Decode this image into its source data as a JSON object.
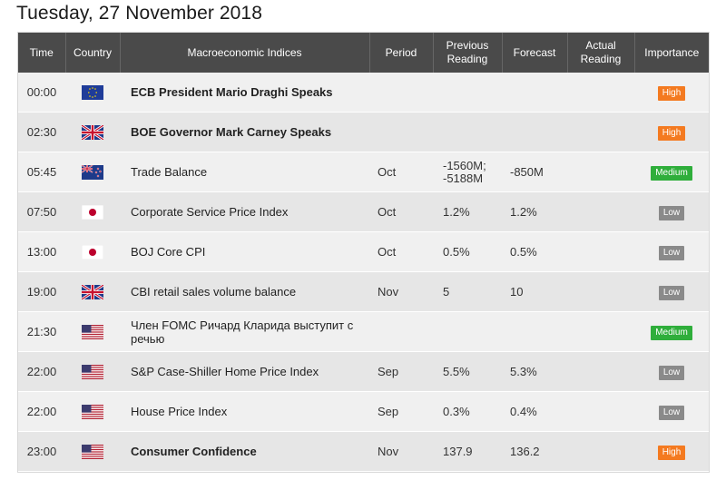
{
  "page_title": "Tuesday, 27 November 2018",
  "headers": {
    "time": "Time",
    "country": "Country",
    "indices": "Macroeconomic Indices",
    "period": "Period",
    "previous": "Previous Reading",
    "forecast": "Forecast",
    "actual": "Actual Reading",
    "importance": "Importance"
  },
  "rows": [
    {
      "time": "00:00",
      "flag": "eu-flag-icon",
      "name": "ECB President Mario Draghi Speaks",
      "bold": true,
      "period": "",
      "previous": "",
      "forecast": "",
      "actual": "",
      "importance": "High",
      "level": "high"
    },
    {
      "time": "02:30",
      "flag": "uk-flag-icon",
      "name": "BOE Governor Mark Carney Speaks",
      "bold": true,
      "period": "",
      "previous": "",
      "forecast": "",
      "actual": "",
      "importance": "High",
      "level": "high"
    },
    {
      "time": "05:45",
      "flag": "nz-flag-icon",
      "name": "Trade Balance",
      "bold": false,
      "period": "Oct",
      "previous": "-1560M; -5188M",
      "forecast": "-850M",
      "actual": "",
      "importance": "Medium",
      "level": "medium"
    },
    {
      "time": "07:50",
      "flag": "jp-flag-icon",
      "name": "Corporate Service Price Index",
      "bold": false,
      "period": "Oct",
      "previous": "1.2%",
      "forecast": "1.2%",
      "actual": "",
      "importance": "Low",
      "level": "low"
    },
    {
      "time": "13:00",
      "flag": "jp-flag-icon",
      "name": "BOJ Core CPI",
      "bold": false,
      "period": "Oct",
      "previous": "0.5%",
      "forecast": "0.5%",
      "actual": "",
      "importance": "Low",
      "level": "low"
    },
    {
      "time": "19:00",
      "flag": "uk-flag-icon",
      "name": "CBI retail sales volume balance",
      "bold": false,
      "period": "Nov",
      "previous": "5",
      "forecast": "10",
      "actual": "",
      "importance": "Low",
      "level": "low"
    },
    {
      "time": "21:30",
      "flag": "us-flag-icon",
      "name": "Член FOMC Ричард Кларида выступит с речью",
      "bold": false,
      "period": "",
      "previous": "",
      "forecast": "",
      "actual": "",
      "importance": "Medium",
      "level": "medium"
    },
    {
      "time": "22:00",
      "flag": "us-flag-icon",
      "name": "S&P Case-Shiller Home Price Index",
      "bold": false,
      "period": "Sep",
      "previous": "5.5%",
      "forecast": "5.3%",
      "actual": "",
      "importance": "Low",
      "level": "low"
    },
    {
      "time": "22:00",
      "flag": "us-flag-icon",
      "name": "House Price Index",
      "bold": false,
      "period": "Sep",
      "previous": "0.3%",
      "forecast": "0.4%",
      "actual": "",
      "importance": "Low",
      "level": "low"
    },
    {
      "time": "23:00",
      "flag": "us-flag-icon",
      "name": "Consumer Confidence",
      "bold": true,
      "period": "Nov",
      "previous": "137.9",
      "forecast": "136.2",
      "actual": "",
      "importance": "High",
      "level": "high"
    }
  ],
  "colors": {
    "header_bg": "#4a4a4a",
    "high": "#f47a20",
    "medium": "#2fae3b",
    "low": "#8a8a8a"
  }
}
